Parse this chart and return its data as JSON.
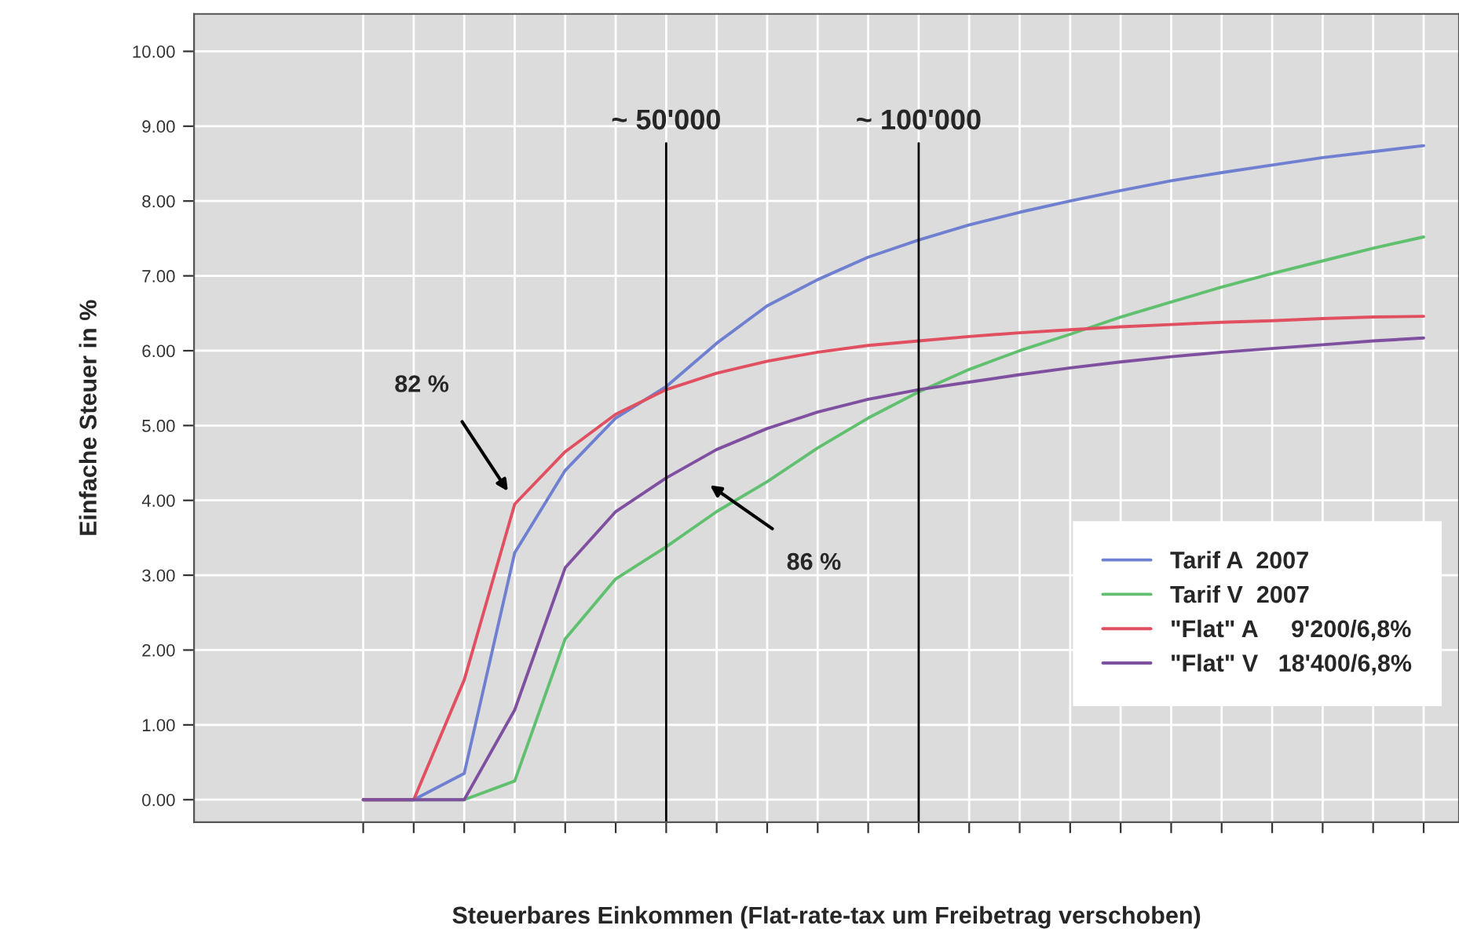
{
  "chart_data": {
    "type": "line",
    "xlabel": "Steuerbares Einkommen (Flat-rate-tax um Freibetrag verschoben)",
    "ylabel": "Einfache Steuer in %",
    "categories": [
      null,
      null,
      null,
      null,
      null,
      null,
      null,
      null,
      null,
      null,
      null,
      null,
      null,
      null,
      null,
      null,
      null,
      null,
      null,
      null,
      null,
      null
    ],
    "ylim": [
      -0.3,
      10.5
    ],
    "yticks": [
      {
        "value": 0,
        "label": "0.00"
      },
      {
        "value": 1,
        "label": "1.00"
      },
      {
        "value": 2,
        "label": "2.00"
      },
      {
        "value": 3,
        "label": "3.00"
      },
      {
        "value": 4,
        "label": "4.00"
      },
      {
        "value": 5,
        "label": "5.00"
      },
      {
        "value": 6,
        "label": "6.00"
      },
      {
        "value": 7,
        "label": "7.00"
      },
      {
        "value": 8,
        "label": "8.00"
      },
      {
        "value": 9,
        "label": "9.00"
      },
      {
        "value": 10,
        "label": "10.00"
      }
    ],
    "grid": true,
    "legend": "bottom right",
    "marker": "none",
    "line_style": "solid",
    "series": [
      {
        "name": "Tarif A  2007",
        "color": "#7080d0",
        "values": [
          0,
          0,
          0.35,
          3.3,
          4.4,
          5.1,
          5.52,
          6.1,
          6.6,
          6.95,
          7.25,
          7.48,
          7.68,
          7.85,
          8.0,
          8.14,
          8.27,
          8.38,
          8.48,
          8.58,
          8.66,
          8.74
        ]
      },
      {
        "name": "Tarif V  2007",
        "color": "#60c070",
        "values": [
          0,
          0,
          0,
          0.25,
          2.15,
          2.95,
          3.38,
          3.85,
          4.25,
          4.7,
          5.1,
          5.45,
          5.75,
          6.0,
          6.22,
          6.45,
          6.65,
          6.85,
          7.03,
          7.2,
          7.37,
          7.52
        ]
      },
      {
        "name": "\"Flat\" A     9'200/6,8%",
        "color": "#e05060",
        "values": [
          0,
          0,
          1.6,
          3.95,
          4.65,
          5.15,
          5.48,
          5.7,
          5.86,
          5.98,
          6.07,
          6.13,
          6.19,
          6.24,
          6.28,
          6.32,
          6.35,
          6.38,
          6.4,
          6.43,
          6.45,
          6.46
        ]
      },
      {
        "name": "\"Flat\" V   18'400/6,8%",
        "color": "#8050a0",
        "values": [
          0,
          0,
          0,
          1.2,
          3.1,
          3.85,
          4.3,
          4.68,
          4.96,
          5.18,
          5.35,
          5.48,
          5.58,
          5.68,
          5.77,
          5.85,
          5.92,
          5.98,
          6.03,
          6.08,
          6.13,
          6.17
        ]
      }
    ],
    "annotations": [
      "~ 50'000",
      "~ 100'000",
      "82 %",
      "86 %"
    ]
  }
}
